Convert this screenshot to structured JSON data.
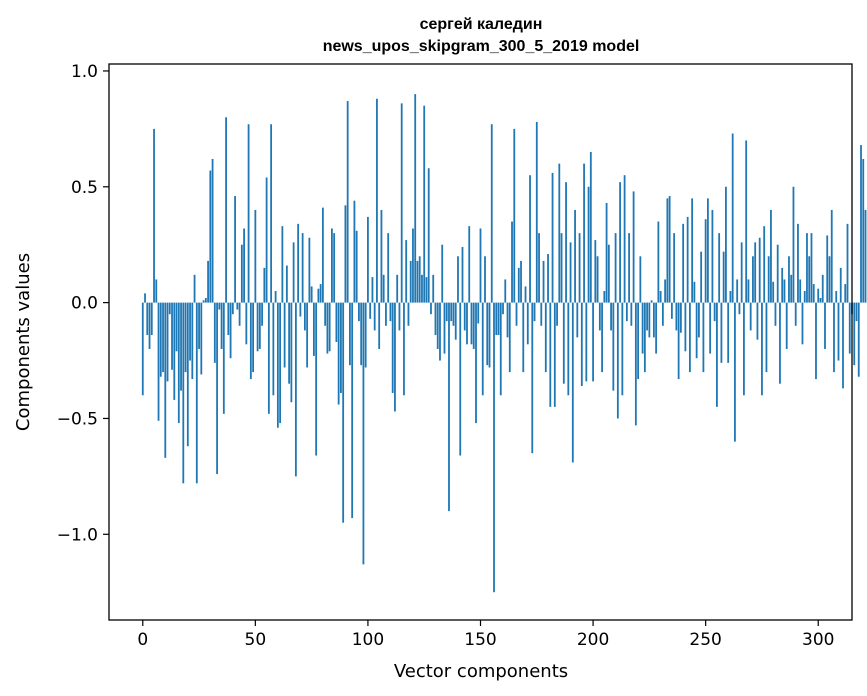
{
  "chart_data": {
    "type": "bar",
    "title_line1": "сергей каледин",
    "title_line2": "news_upos_skipgram_300_5_2019 model",
    "xlabel": "Vector components",
    "ylabel": "Components values",
    "xlim": [
      -15,
      315
    ],
    "ylim": [
      -1.37,
      1.03
    ],
    "xticks": [
      0,
      50,
      100,
      150,
      200,
      250,
      300
    ],
    "xtick_labels": [
      "0",
      "50",
      "100",
      "150",
      "200",
      "250",
      "300"
    ],
    "yticks": [
      -1.0,
      -0.5,
      0.0,
      0.5,
      1.0
    ],
    "ytick_labels": [
      "−1.0",
      "−0.5",
      "0.0",
      "0.5",
      "1.0"
    ],
    "bar_color": "#1f77b4",
    "grid": false,
    "values": [
      -0.4,
      0.04,
      -0.14,
      -0.2,
      -0.14,
      0.75,
      0.1,
      -0.51,
      -0.32,
      -0.3,
      -0.67,
      -0.34,
      -0.05,
      -0.29,
      -0.42,
      -0.21,
      -0.52,
      -0.38,
      -0.78,
      -0.3,
      -0.62,
      -0.25,
      -0.33,
      0.12,
      -0.78,
      -0.2,
      -0.31,
      0.01,
      0.02,
      0.18,
      0.57,
      0.62,
      -0.26,
      -0.74,
      -0.03,
      -0.2,
      -0.48,
      0.8,
      -0.14,
      -0.24,
      -0.05,
      0.46,
      -0.03,
      -0.1,
      0.25,
      0.32,
      -0.18,
      0.77,
      -0.33,
      -0.3,
      0.4,
      -0.21,
      -0.2,
      -0.1,
      0.15,
      0.54,
      -0.48,
      0.77,
      -0.4,
      0.05,
      -0.54,
      -0.52,
      0.33,
      -0.28,
      0.16,
      -0.35,
      -0.43,
      0.26,
      -0.75,
      0.34,
      -0.06,
      0.3,
      -0.12,
      -0.28,
      0.28,
      0.07,
      -0.23,
      -0.66,
      0.06,
      0.08,
      0.41,
      -0.1,
      -0.22,
      -0.21,
      0.32,
      0.3,
      -0.17,
      -0.44,
      -0.39,
      -0.95,
      0.42,
      0.87,
      -0.27,
      -0.93,
      0.44,
      0.31,
      -0.08,
      -0.27,
      -1.13,
      -0.28,
      0.37,
      -0.07,
      0.11,
      -0.12,
      0.88,
      -0.2,
      0.4,
      0.12,
      -0.1,
      0.3,
      -0.08,
      -0.39,
      -0.47,
      0.12,
      -0.12,
      0.86,
      -0.4,
      0.27,
      -0.1,
      0.18,
      0.32,
      0.9,
      0.18,
      0.2,
      0.12,
      0.85,
      0.11,
      0.58,
      -0.05,
      0.12,
      -0.14,
      -0.2,
      -0.25,
      0.25,
      -0.22,
      -0.08,
      -0.9,
      -0.08,
      -0.1,
      -0.16,
      0.2,
      -0.66,
      0.24,
      -0.12,
      -0.18,
      0.33,
      -0.18,
      -0.2,
      -0.52,
      -0.09,
      0.32,
      -0.4,
      0.2,
      -0.27,
      -0.28,
      0.77,
      -1.25,
      -0.14,
      -0.14,
      -0.4,
      -0.05,
      0.1,
      -0.15,
      -0.3,
      0.35,
      0.75,
      -0.1,
      0.15,
      0.18,
      -0.3,
      0.07,
      -0.18,
      0.55,
      -0.65,
      -0.08,
      0.78,
      0.3,
      -0.1,
      0.18,
      -0.3,
      0.21,
      -0.45,
      0.56,
      -0.45,
      -0.1,
      0.6,
      0.3,
      -0.35,
      0.52,
      -0.4,
      0.26,
      -0.69,
      0.4,
      -0.15,
      0.3,
      -0.36,
      0.6,
      -0.34,
      0.5,
      0.65,
      -0.34,
      0.27,
      0.2,
      -0.12,
      -0.3,
      0.05,
      0.43,
      0.25,
      -0.12,
      -0.38,
      0.3,
      -0.5,
      0.52,
      -0.4,
      0.55,
      -0.08,
      0.3,
      -0.1,
      0.48,
      -0.53,
      -0.33,
      0.2,
      -0.22,
      -0.3,
      -0.12,
      -0.15,
      0.01,
      -0.15,
      -0.22,
      0.35,
      0.05,
      -0.1,
      0.1,
      0.45,
      0.46,
      -0.07,
      0.3,
      -0.12,
      -0.33,
      -0.13,
      0.34,
      -0.21,
      0.37,
      -0.3,
      0.45,
      0.09,
      -0.24,
      -0.15,
      0.22,
      -0.3,
      0.36,
      0.45,
      -0.22,
      0.4,
      -0.08,
      -0.45,
      0.3,
      -0.26,
      0.22,
      0.5,
      -0.26,
      0.05,
      0.73,
      -0.6,
      0.1,
      -0.05,
      0.26,
      -0.4,
      0.7,
      0.1,
      -0.12,
      0.2,
      0.26,
      -0.16,
      0.28,
      -0.4,
      0.33,
      -0.3,
      0.2,
      0.4,
      0.09,
      -0.1,
      0.25,
      -0.35,
      0.15,
      0.1,
      -0.2,
      0.2,
      0.12,
      0.5,
      -0.1,
      0.34,
      0.1,
      -0.18,
      0.05,
      0.3,
      0.2,
      0.3,
      0.08,
      -0.33,
      0.06,
      0.02,
      0.12,
      -0.2,
      0.29,
      0.2,
      0.4,
      -0.3,
      0.05,
      -0.25,
      0.15,
      -0.37,
      0.08,
      0.34,
      -0.22,
      -0.05,
      -0.27,
      -0.08,
      -0.32,
      0.68,
      0.62,
      0.4
    ]
  }
}
